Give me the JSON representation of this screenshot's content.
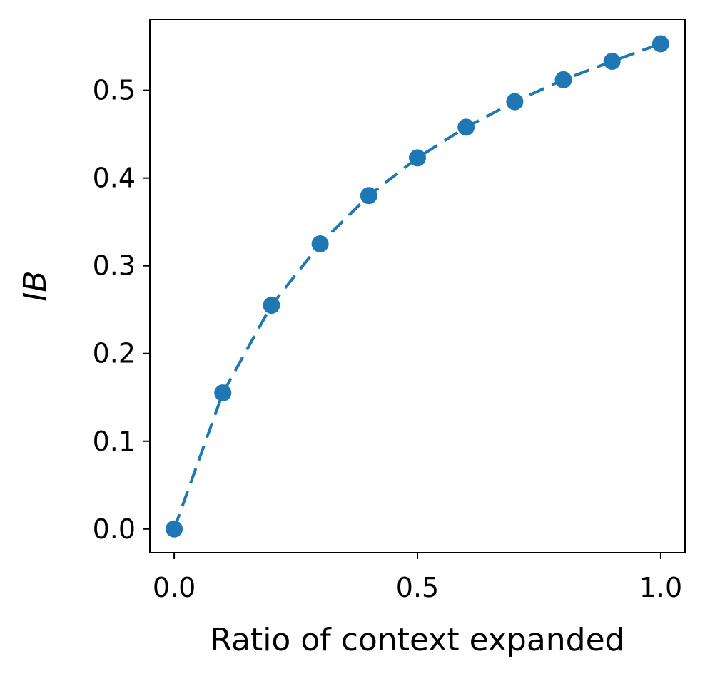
{
  "chart_data": {
    "type": "line",
    "title": "",
    "xlabel": "Ratio of context expanded",
    "ylabel": "IB",
    "xlim": [
      -0.05,
      1.05
    ],
    "ylim": [
      -0.027,
      0.581
    ],
    "xticks": [
      {
        "value": 0.0,
        "label": "0.0"
      },
      {
        "value": 0.5,
        "label": "0.5"
      },
      {
        "value": 1.0,
        "label": "1.0"
      }
    ],
    "yticks": [
      {
        "value": 0.0,
        "label": "0.0"
      },
      {
        "value": 0.1,
        "label": "0.1"
      },
      {
        "value": 0.2,
        "label": "0.2"
      },
      {
        "value": 0.3,
        "label": "0.3"
      },
      {
        "value": 0.4,
        "label": "0.4"
      },
      {
        "value": 0.5,
        "label": "0.5"
      }
    ],
    "grid": false,
    "legend": "none",
    "line_style": "dashed",
    "marker": "circle",
    "color": "#1f77b4",
    "series": [
      {
        "x": [
          0.0,
          0.1,
          0.2,
          0.3,
          0.4,
          0.5,
          0.6,
          0.7,
          0.8,
          0.9,
          1.0
        ],
        "y": [
          0.0,
          0.155,
          0.255,
          0.325,
          0.38,
          0.423,
          0.458,
          0.487,
          0.512,
          0.533,
          0.553
        ]
      }
    ]
  }
}
